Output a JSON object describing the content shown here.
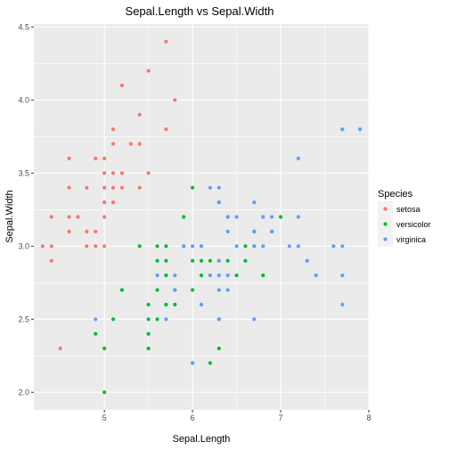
{
  "chart_data": {
    "type": "scatter",
    "title": "Sepal.Length vs Sepal.Width",
    "xlabel": "Sepal.Length",
    "ylabel": "Sepal.Width",
    "xlim": [
      4.2,
      8.0
    ],
    "ylim": [
      1.88,
      4.52
    ],
    "x_ticks": [
      5,
      6,
      7,
      8
    ],
    "y_ticks": [
      2.0,
      2.5,
      3.0,
      3.5,
      4.0,
      4.5
    ],
    "x_tick_labels": [
      "5",
      "6",
      "7",
      "8"
    ],
    "y_tick_labels": [
      "2.0",
      "2.5",
      "3.0",
      "3.5",
      "4.0",
      "4.5"
    ],
    "grid": true,
    "background": "#EBEBEB",
    "legend": {
      "title": "Species",
      "position": "right"
    },
    "series": [
      {
        "name": "setosa",
        "color": "#F8766D",
        "points": [
          [
            4.3,
            3.0
          ],
          [
            4.4,
            2.9
          ],
          [
            4.4,
            3.0
          ],
          [
            4.4,
            3.2
          ],
          [
            4.5,
            2.3
          ],
          [
            4.6,
            3.1
          ],
          [
            4.6,
            3.2
          ],
          [
            4.6,
            3.4
          ],
          [
            4.6,
            3.6
          ],
          [
            4.7,
            3.2
          ],
          [
            4.8,
            3.0
          ],
          [
            4.8,
            3.1
          ],
          [
            4.8,
            3.4
          ],
          [
            4.9,
            3.0
          ],
          [
            4.9,
            3.1
          ],
          [
            4.9,
            3.6
          ],
          [
            5.0,
            3.0
          ],
          [
            5.0,
            3.2
          ],
          [
            5.0,
            3.3
          ],
          [
            5.0,
            3.4
          ],
          [
            5.0,
            3.5
          ],
          [
            5.0,
            3.6
          ],
          [
            5.1,
            3.3
          ],
          [
            5.1,
            3.4
          ],
          [
            5.1,
            3.5
          ],
          [
            5.1,
            3.7
          ],
          [
            5.1,
            3.8
          ],
          [
            5.2,
            3.4
          ],
          [
            5.2,
            3.5
          ],
          [
            5.2,
            4.1
          ],
          [
            5.3,
            3.7
          ],
          [
            5.4,
            3.4
          ],
          [
            5.4,
            3.7
          ],
          [
            5.4,
            3.9
          ],
          [
            5.5,
            3.5
          ],
          [
            5.5,
            4.2
          ],
          [
            5.7,
            3.8
          ],
          [
            5.7,
            4.4
          ],
          [
            5.8,
            4.0
          ]
        ]
      },
      {
        "name": "versicolor",
        "color": "#00BA38",
        "points": [
          [
            4.9,
            2.4
          ],
          [
            5.0,
            2.0
          ],
          [
            5.0,
            2.3
          ],
          [
            5.1,
            2.5
          ],
          [
            5.2,
            2.7
          ],
          [
            5.4,
            3.0
          ],
          [
            5.5,
            2.3
          ],
          [
            5.5,
            2.4
          ],
          [
            5.5,
            2.5
          ],
          [
            5.5,
            2.6
          ],
          [
            5.6,
            2.5
          ],
          [
            5.6,
            2.7
          ],
          [
            5.6,
            2.9
          ],
          [
            5.6,
            3.0
          ],
          [
            5.7,
            2.6
          ],
          [
            5.7,
            2.8
          ],
          [
            5.7,
            2.9
          ],
          [
            5.7,
            3.0
          ],
          [
            5.8,
            2.6
          ],
          [
            5.8,
            2.7
          ],
          [
            5.9,
            3.0
          ],
          [
            5.9,
            3.2
          ],
          [
            6.0,
            2.2
          ],
          [
            6.0,
            2.7
          ],
          [
            6.0,
            2.9
          ],
          [
            6.0,
            3.4
          ],
          [
            6.1,
            2.8
          ],
          [
            6.1,
            2.9
          ],
          [
            6.1,
            3.0
          ],
          [
            6.2,
            2.2
          ],
          [
            6.2,
            2.9
          ],
          [
            6.3,
            2.3
          ],
          [
            6.3,
            2.5
          ],
          [
            6.3,
            2.9
          ],
          [
            6.3,
            3.3
          ],
          [
            6.4,
            2.9
          ],
          [
            6.4,
            3.2
          ],
          [
            6.5,
            2.8
          ],
          [
            6.6,
            2.9
          ],
          [
            6.6,
            3.0
          ],
          [
            6.7,
            3.0
          ],
          [
            6.7,
            3.1
          ],
          [
            6.8,
            2.8
          ],
          [
            6.9,
            3.1
          ],
          [
            7.0,
            3.2
          ]
        ]
      },
      {
        "name": "virginica",
        "color": "#619CFF",
        "points": [
          [
            4.9,
            2.5
          ],
          [
            5.6,
            2.8
          ],
          [
            5.7,
            2.5
          ],
          [
            5.8,
            2.7
          ],
          [
            5.8,
            2.8
          ],
          [
            5.9,
            3.0
          ],
          [
            6.0,
            2.2
          ],
          [
            6.0,
            3.0
          ],
          [
            6.1,
            2.6
          ],
          [
            6.1,
            3.0
          ],
          [
            6.2,
            2.8
          ],
          [
            6.2,
            3.4
          ],
          [
            6.3,
            2.5
          ],
          [
            6.3,
            2.7
          ],
          [
            6.3,
            2.8
          ],
          [
            6.3,
            2.9
          ],
          [
            6.3,
            3.3
          ],
          [
            6.3,
            3.4
          ],
          [
            6.4,
            2.7
          ],
          [
            6.4,
            2.8
          ],
          [
            6.4,
            3.1
          ],
          [
            6.4,
            3.2
          ],
          [
            6.5,
            3.0
          ],
          [
            6.5,
            3.2
          ],
          [
            6.7,
            2.5
          ],
          [
            6.7,
            3.0
          ],
          [
            6.7,
            3.1
          ],
          [
            6.7,
            3.3
          ],
          [
            6.8,
            3.0
          ],
          [
            6.8,
            3.2
          ],
          [
            6.9,
            3.1
          ],
          [
            6.9,
            3.2
          ],
          [
            7.1,
            3.0
          ],
          [
            7.2,
            3.0
          ],
          [
            7.2,
            3.2
          ],
          [
            7.2,
            3.6
          ],
          [
            7.3,
            2.9
          ],
          [
            7.4,
            2.8
          ],
          [
            7.6,
            3.0
          ],
          [
            7.7,
            2.6
          ],
          [
            7.7,
            2.8
          ],
          [
            7.7,
            3.0
          ],
          [
            7.7,
            3.8
          ],
          [
            7.9,
            3.8
          ]
        ]
      }
    ]
  }
}
